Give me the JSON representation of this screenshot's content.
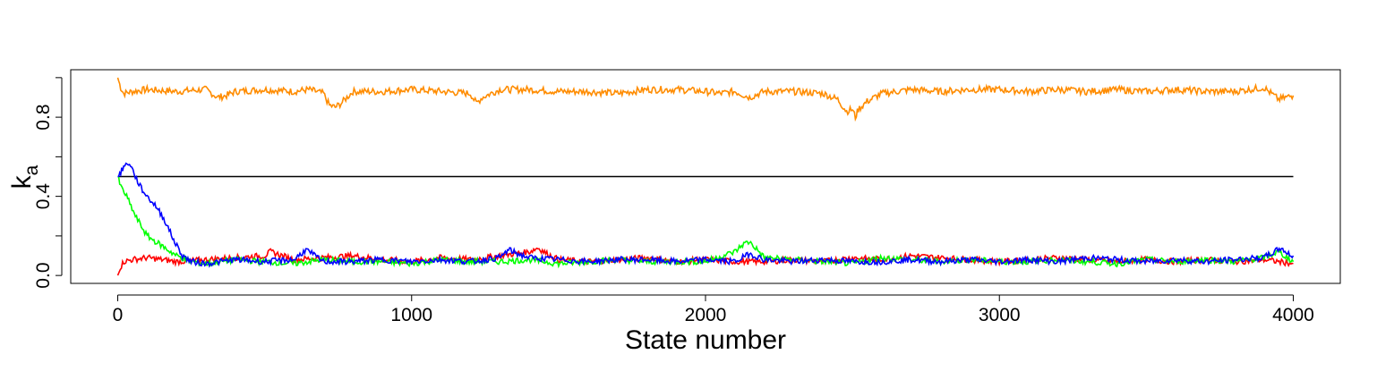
{
  "chart_data": {
    "type": "line",
    "title": "",
    "xlabel": "State number",
    "ylabel": "k",
    "ylabel_subscript": "a",
    "xlim": [
      -160,
      4160
    ],
    "ylim": [
      -0.04,
      1.04
    ],
    "xticks": [
      0,
      1000,
      2000,
      3000,
      4000
    ],
    "xtick_labels": [
      "0",
      "1000",
      "2000",
      "3000",
      "4000"
    ],
    "yticks": [
      0.0,
      0.2,
      0.4,
      0.6,
      0.8,
      1.0
    ],
    "ytick_labels": [
      "0.0",
      "",
      "0.4",
      "",
      "0.8",
      ""
    ],
    "grid": false,
    "legend": "none",
    "series": [
      {
        "color": "#ff8c00",
        "x": [
          0,
          10,
          20,
          50,
          100,
          200,
          300,
          340,
          370,
          400,
          500,
          600,
          650,
          700,
          720,
          740,
          760,
          800,
          900,
          1000,
          1100,
          1200,
          1220,
          1240,
          1300,
          1400,
          1500,
          1600,
          1700,
          1800,
          1900,
          2000,
          2050,
          2100,
          2150,
          2200,
          2300,
          2400,
          2450,
          2480,
          2500,
          2510,
          2520,
          2550,
          2600,
          2700,
          2800,
          2900,
          3000,
          3100,
          3200,
          3300,
          3400,
          3500,
          3600,
          3700,
          3800,
          3900,
          3950,
          4000
        ],
        "y": [
          1.0,
          0.95,
          0.92,
          0.93,
          0.94,
          0.93,
          0.94,
          0.9,
          0.91,
          0.93,
          0.94,
          0.93,
          0.94,
          0.92,
          0.86,
          0.85,
          0.87,
          0.93,
          0.93,
          0.94,
          0.93,
          0.92,
          0.87,
          0.9,
          0.94,
          0.94,
          0.93,
          0.93,
          0.92,
          0.94,
          0.94,
          0.93,
          0.92,
          0.93,
          0.9,
          0.93,
          0.93,
          0.92,
          0.89,
          0.83,
          0.84,
          0.8,
          0.84,
          0.88,
          0.92,
          0.94,
          0.93,
          0.94,
          0.94,
          0.93,
          0.94,
          0.93,
          0.94,
          0.93,
          0.94,
          0.93,
          0.93,
          0.95,
          0.89,
          0.91
        ]
      },
      {
        "color": "#000000",
        "x": [
          0,
          4000
        ],
        "y": [
          0.5,
          0.5
        ]
      },
      {
        "color": "#ff0000",
        "x": [
          0,
          5,
          20,
          50,
          100,
          150,
          200,
          300,
          400,
          500,
          520,
          600,
          700,
          800,
          900,
          1000,
          1100,
          1200,
          1300,
          1400,
          1430,
          1460,
          1500,
          1600,
          1700,
          1800,
          1900,
          2000,
          2100,
          2200,
          2300,
          2400,
          2500,
          2600,
          2700,
          2800,
          2900,
          3000,
          3100,
          3200,
          3300,
          3400,
          3500,
          3600,
          3700,
          3800,
          3900,
          4000
        ],
        "y": [
          0.0,
          0.03,
          0.07,
          0.08,
          0.09,
          0.08,
          0.07,
          0.08,
          0.09,
          0.1,
          0.12,
          0.08,
          0.09,
          0.1,
          0.08,
          0.07,
          0.09,
          0.08,
          0.1,
          0.12,
          0.14,
          0.11,
          0.08,
          0.07,
          0.08,
          0.09,
          0.07,
          0.08,
          0.07,
          0.07,
          0.08,
          0.07,
          0.09,
          0.08,
          0.1,
          0.09,
          0.08,
          0.07,
          0.08,
          0.09,
          0.08,
          0.07,
          0.08,
          0.07,
          0.08,
          0.07,
          0.08,
          0.06
        ]
      },
      {
        "color": "#00ff00",
        "x": [
          0,
          10,
          30,
          60,
          100,
          150,
          200,
          250,
          300,
          400,
          500,
          600,
          700,
          800,
          900,
          1000,
          1100,
          1200,
          1300,
          1400,
          1500,
          1600,
          1700,
          1800,
          1900,
          2000,
          2100,
          2130,
          2150,
          2170,
          2200,
          2300,
          2400,
          2500,
          2600,
          2700,
          2800,
          2900,
          3000,
          3100,
          3200,
          3300,
          3400,
          3500,
          3600,
          3700,
          3800,
          3900,
          3950,
          4000
        ],
        "y": [
          0.5,
          0.45,
          0.4,
          0.3,
          0.2,
          0.15,
          0.1,
          0.07,
          0.06,
          0.08,
          0.07,
          0.06,
          0.08,
          0.07,
          0.07,
          0.06,
          0.08,
          0.07,
          0.07,
          0.08,
          0.06,
          0.07,
          0.08,
          0.07,
          0.07,
          0.07,
          0.12,
          0.16,
          0.17,
          0.14,
          0.09,
          0.08,
          0.07,
          0.06,
          0.09,
          0.08,
          0.07,
          0.08,
          0.07,
          0.07,
          0.08,
          0.07,
          0.06,
          0.08,
          0.07,
          0.08,
          0.07,
          0.09,
          0.12,
          0.07
        ]
      },
      {
        "color": "#0000ff",
        "x": [
          0,
          10,
          20,
          40,
          60,
          80,
          100,
          130,
          160,
          190,
          220,
          250,
          300,
          400,
          500,
          600,
          640,
          700,
          800,
          900,
          1000,
          1100,
          1200,
          1300,
          1330,
          1360,
          1400,
          1500,
          1600,
          1700,
          1800,
          1900,
          2000,
          2100,
          2150,
          2200,
          2300,
          2400,
          2500,
          2600,
          2700,
          2800,
          2900,
          3000,
          3100,
          3200,
          3300,
          3400,
          3500,
          3600,
          3700,
          3800,
          3900,
          3960,
          3980,
          4000
        ],
        "y": [
          0.5,
          0.52,
          0.55,
          0.57,
          0.5,
          0.44,
          0.4,
          0.35,
          0.28,
          0.18,
          0.1,
          0.07,
          0.06,
          0.08,
          0.07,
          0.08,
          0.13,
          0.07,
          0.07,
          0.08,
          0.07,
          0.08,
          0.07,
          0.09,
          0.13,
          0.11,
          0.09,
          0.08,
          0.07,
          0.08,
          0.08,
          0.07,
          0.08,
          0.07,
          0.11,
          0.08,
          0.07,
          0.08,
          0.07,
          0.07,
          0.08,
          0.07,
          0.08,
          0.07,
          0.08,
          0.07,
          0.09,
          0.08,
          0.07,
          0.08,
          0.07,
          0.08,
          0.09,
          0.14,
          0.11,
          0.1
        ]
      }
    ]
  }
}
